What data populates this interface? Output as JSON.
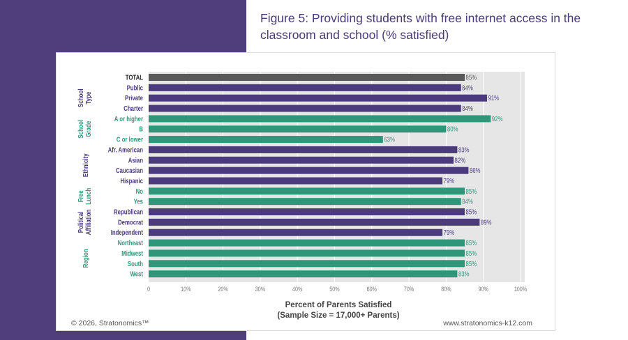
{
  "title": "Figure 5: Providing students with free internet access in the classroom and school (% satisfied)",
  "footer": {
    "copyright": "© 2026, Stratonomics™",
    "url": "www.stratonomics-k12.com"
  },
  "colors": {
    "background": "#4f3d7c",
    "purple": "#4b3b7e",
    "green": "#2e977a",
    "total": "#595959",
    "title": "#4b3b78"
  },
  "chart_data": {
    "type": "bar",
    "orientation": "horizontal",
    "title": "Figure 5: Providing students with free internet access in the classroom and school (% satisfied)",
    "xlabel": "Percent of Parents Satisfied",
    "xlabel_sub": "(Sample Size = 17,000+ Parents)",
    "xlim": [
      0,
      100
    ],
    "xticks": [
      "0",
      "10%",
      "20%",
      "30%",
      "40%",
      "50%",
      "60%",
      "70%",
      "80%",
      "90%",
      "100%"
    ],
    "grid": true,
    "groups": [
      {
        "name": "",
        "color": "total",
        "categories": [
          "TOTAL"
        ],
        "values": [
          85
        ]
      },
      {
        "name": "School Type",
        "color": "purple",
        "categories": [
          "Public",
          "Private",
          "Charter"
        ],
        "values": [
          84,
          91,
          84
        ]
      },
      {
        "name": "School Grade",
        "color": "green",
        "categories": [
          "A or higher",
          "B",
          "C or lower"
        ],
        "values": [
          92,
          80,
          63
        ]
      },
      {
        "name": "Ethnicity",
        "color": "purple",
        "categories": [
          "Afr. American",
          "Asian",
          "Caucasian",
          "Hispanic"
        ],
        "values": [
          83,
          82,
          86,
          79
        ]
      },
      {
        "name": "Free Lunch",
        "color": "green",
        "categories": [
          "No",
          "Yes"
        ],
        "values": [
          85,
          84
        ]
      },
      {
        "name": "Political Affiliation",
        "color": "purple",
        "categories": [
          "Republican",
          "Democrat",
          "Independent"
        ],
        "values": [
          85,
          89,
          79
        ]
      },
      {
        "name": "Region",
        "color": "green",
        "categories": [
          "Northeast",
          "Midwest",
          "South",
          "West"
        ],
        "values": [
          85,
          85,
          85,
          83
        ]
      }
    ]
  }
}
